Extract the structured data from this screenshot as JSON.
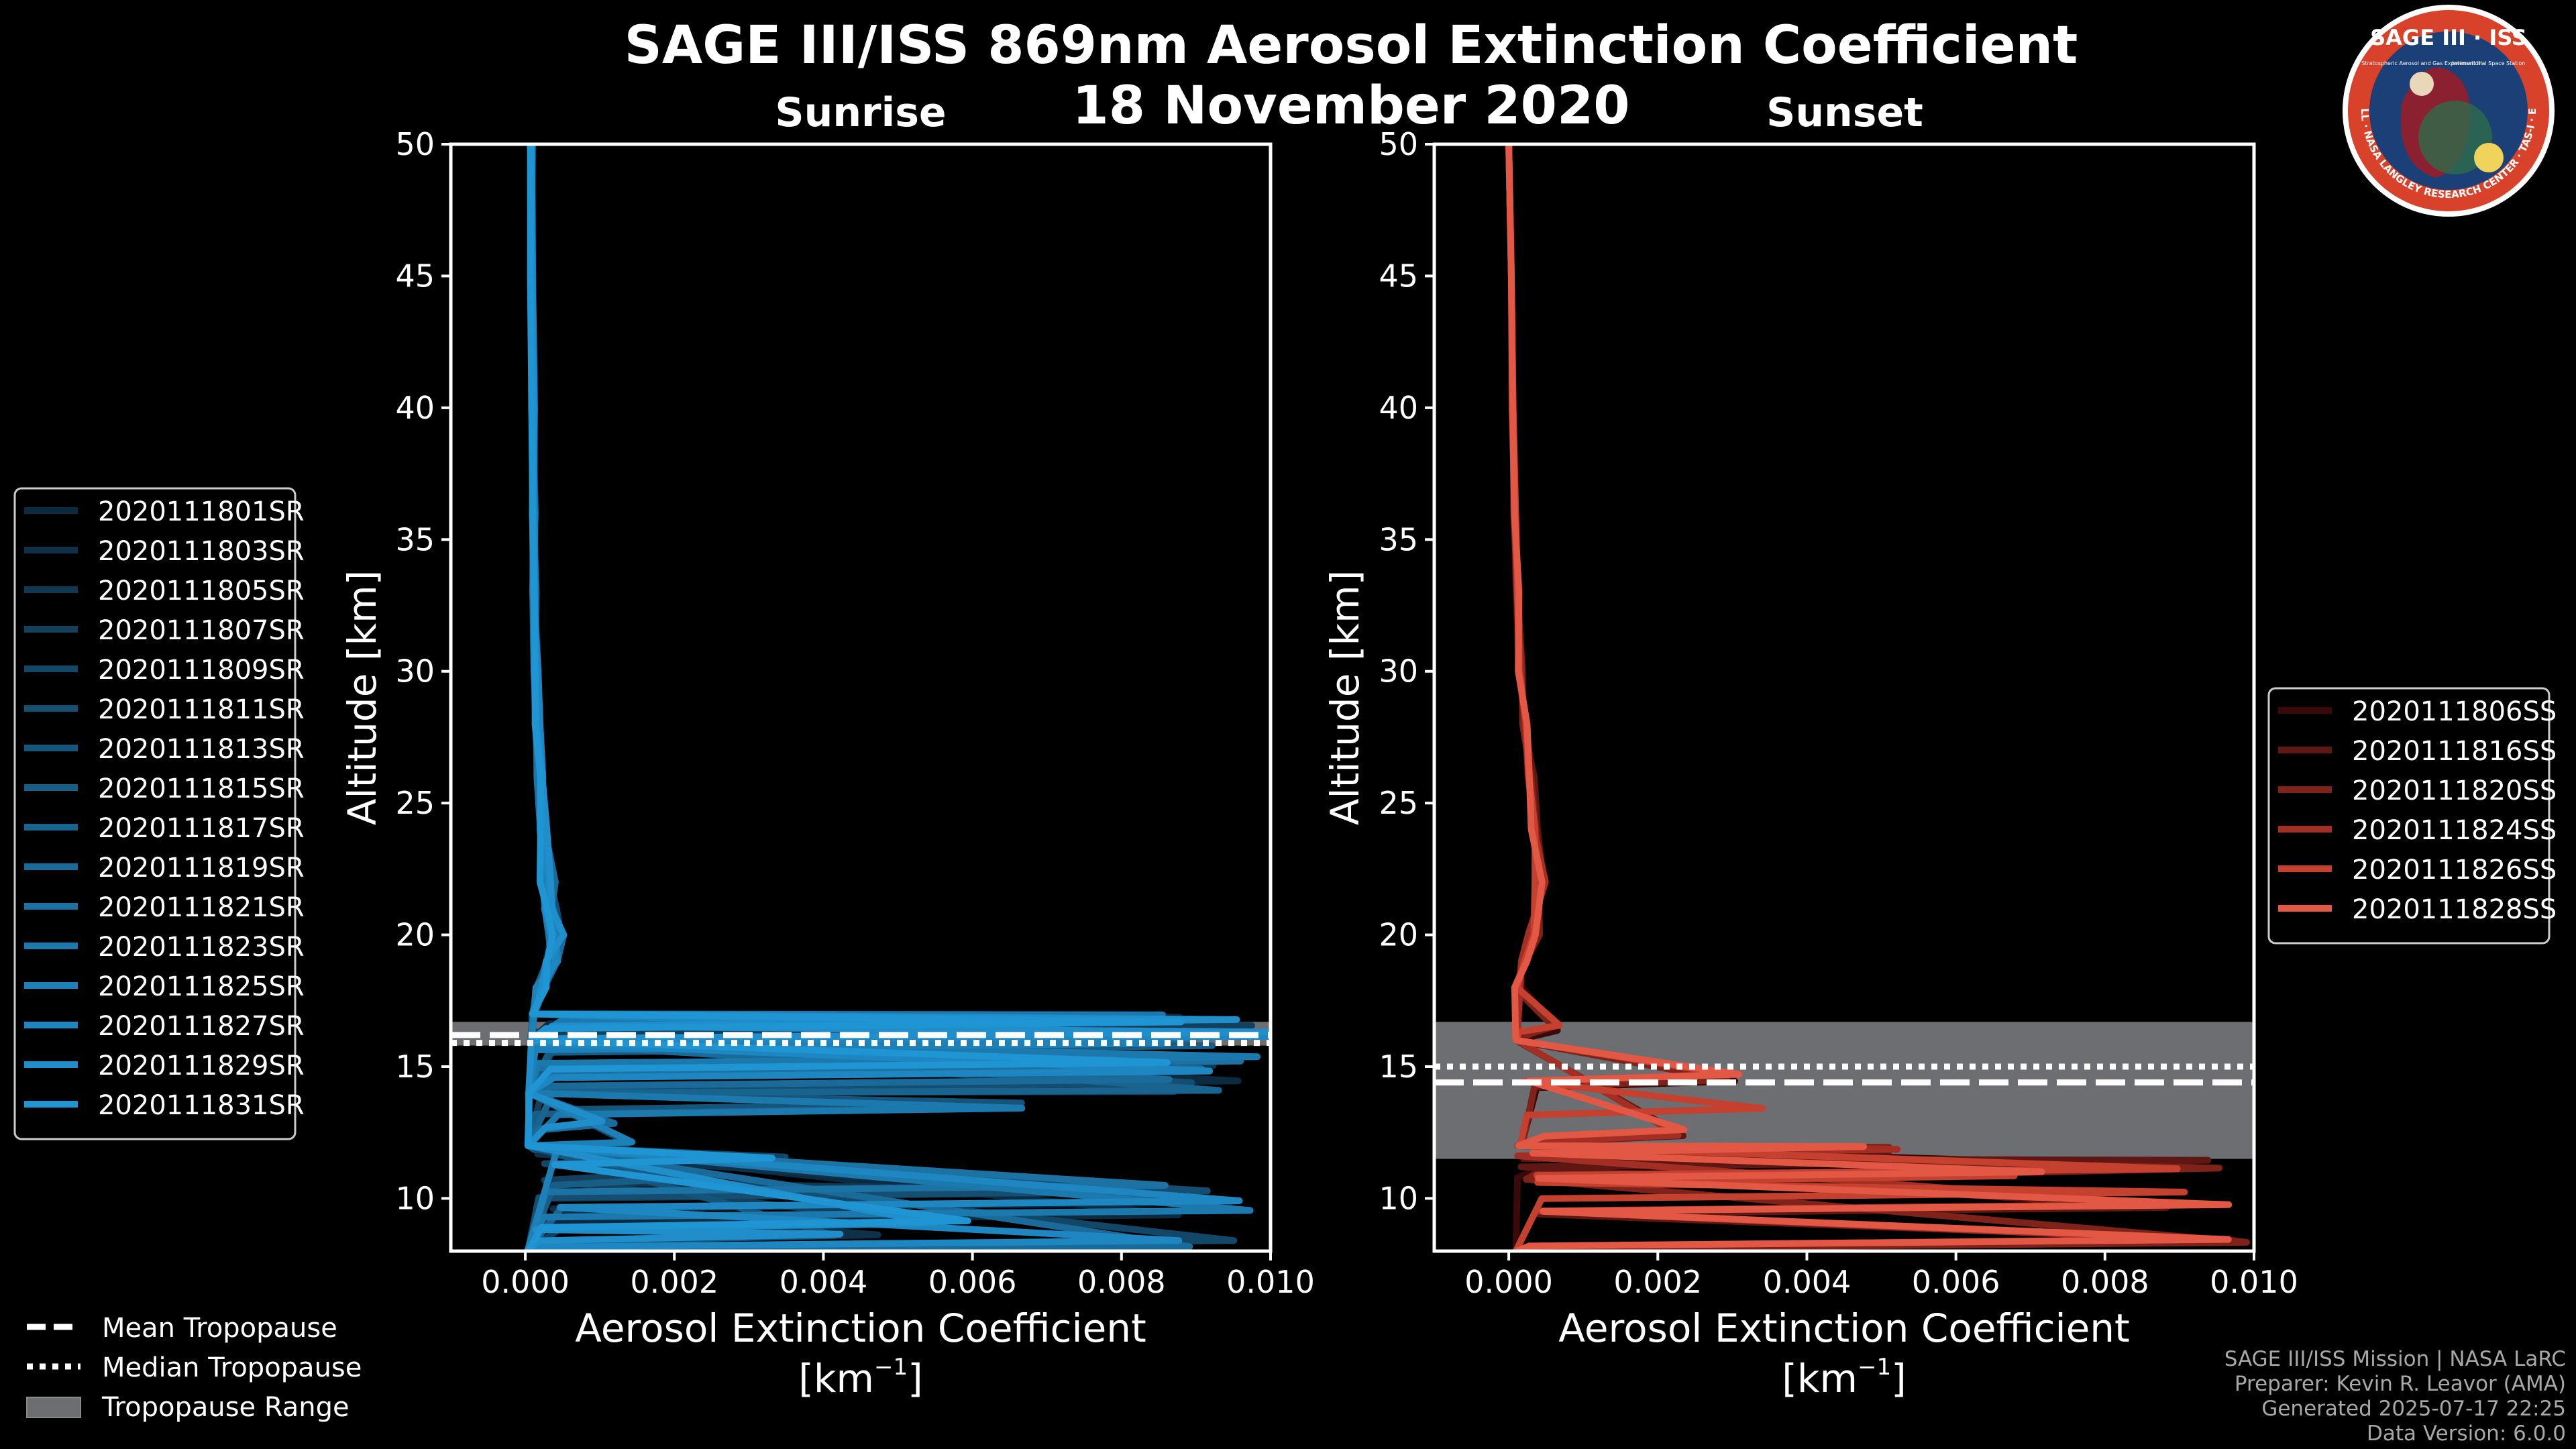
{
  "title": "SAGE III/ISS 869nm Aerosol Extinction Coefficient",
  "subtitle": "18 November 2020",
  "logo": {
    "top_text": "SAGE III · ISS",
    "ring_text": "BALL · NASA LANGLEY RESEARCH CENTER · TAS-I · ESA",
    "small_left": "Stratospheric Aerosol and Gas Experiment III",
    "small_right": "International Space Station",
    "colors": {
      "ring": "#d8412a",
      "inner": "#1b3f77",
      "border": "#ffffff"
    }
  },
  "colors": {
    "background": "#000000",
    "axes": "#ffffff",
    "tropopause_band": "#6d6e72",
    "sunrise_line": "#1a80b9",
    "sunset_line": "#e25845"
  },
  "tropopause_legend": {
    "mean_label": "Mean Tropopause",
    "median_label": "Median Tropopause",
    "range_label": "Tropopause Range"
  },
  "credits": {
    "line1": "SAGE III/ISS Mission | NASA LaRC",
    "line2": "Preparer: Kevin R. Leavor (AMA)",
    "line3": "Generated 2025-07-17 22:25",
    "line4": "Data Version: 6.0.0"
  },
  "chart_data": [
    {
      "type": "line",
      "title": "Sunrise",
      "xlabel": "Aerosol Extinction Coefficient",
      "xlabel_units": "[km",
      "xlabel_units_sup": "−1",
      "xlabel_units_close": "]",
      "ylabel": "Altitude [km]",
      "xlim": [
        -0.001,
        0.01
      ],
      "ylim": [
        8,
        50
      ],
      "xticks": [
        0.0,
        0.002,
        0.004,
        0.006,
        0.008,
        0.01
      ],
      "xtick_labels": [
        "0.000",
        "0.002",
        "0.004",
        "0.006",
        "0.008",
        "0.010"
      ],
      "yticks": [
        10,
        15,
        20,
        25,
        30,
        35,
        40,
        45,
        50
      ],
      "tropopause": {
        "mean": 16.2,
        "median": 15.9,
        "range": [
          15.8,
          16.7
        ]
      },
      "series_labels": [
        "2020111801SR",
        "2020111803SR",
        "2020111805SR",
        "2020111807SR",
        "2020111809SR",
        "2020111811SR",
        "2020111813SR",
        "2020111815SR",
        "2020111817SR",
        "2020111819SR",
        "2020111821SR",
        "2020111823SR",
        "2020111825SR",
        "2020111827SR",
        "2020111829SR",
        "2020111831SR"
      ],
      "legend_colors": [
        "#0c2a40",
        "#0e3149",
        "#103853",
        "#12405d",
        "#134767",
        "#154e71",
        "#16557b",
        "#185d85",
        "#19648f",
        "#1a6b99",
        "#1b72a3",
        "#1c79ad",
        "#1d80b7",
        "#1e87c1",
        "#1f8ecb",
        "#2095d4"
      ],
      "reference_profile": {
        "x": [
          8e-05,
          8e-05,
          0.0001,
          0.00011,
          0.00012,
          0.00014,
          0.00016,
          0.00019,
          0.00024,
          0.0003,
          0.00035,
          0.0004,
          0.00035,
          0.0002,
          0.0001,
          8e-05,
          5e-05,
          4e-05,
          3e-05
        ],
        "y": [
          50,
          45,
          40,
          36,
          33,
          30,
          28,
          26,
          24,
          22,
          21,
          20,
          19,
          18,
          17,
          16,
          14,
          12,
          8
        ]
      },
      "lower_excursions": [
        {
          "y": 16.9,
          "x": 0.01
        },
        {
          "y": 16.7,
          "x": 0.01
        },
        {
          "y": 16.3,
          "x": 0.01
        },
        {
          "y": 16.1,
          "x": 0.01
        },
        {
          "y": 15.8,
          "x": 0.01
        },
        {
          "y": 15.3,
          "x": 0.01
        },
        {
          "y": 14.9,
          "x": 0.01
        },
        {
          "y": 14.5,
          "x": 0.01
        },
        {
          "y": 14.2,
          "x": 0.01
        },
        {
          "y": 13.5,
          "x": 0.0074
        },
        {
          "y": 12.8,
          "x": 0.0012
        },
        {
          "y": 12.0,
          "x": 0.0015
        },
        {
          "y": 11.5,
          "x": 0.0038
        },
        {
          "y": 10.8,
          "x": 0.0021
        },
        {
          "y": 10.4,
          "x": 0.01
        },
        {
          "y": 9.9,
          "x": 0.01
        },
        {
          "y": 9.5,
          "x": 0.01
        },
        {
          "y": 9.1,
          "x": 0.0061
        },
        {
          "y": 8.7,
          "x": 0.0048
        },
        {
          "y": 8.3,
          "x": 0.01
        }
      ]
    },
    {
      "type": "line",
      "title": "Sunset",
      "xlabel": "Aerosol Extinction Coefficient",
      "xlabel_units": "[km",
      "xlabel_units_sup": "−1",
      "xlabel_units_close": "]",
      "ylabel": "Altitude [km]",
      "xlim": [
        -0.001,
        0.01
      ],
      "ylim": [
        8,
        50
      ],
      "xticks": [
        0.0,
        0.002,
        0.004,
        0.006,
        0.008,
        0.01
      ],
      "xtick_labels": [
        "0.000",
        "0.002",
        "0.004",
        "0.006",
        "0.008",
        "0.010"
      ],
      "yticks": [
        10,
        15,
        20,
        25,
        30,
        35,
        40,
        45,
        50
      ],
      "tropopause": {
        "mean": 14.4,
        "median": 15.0,
        "range": [
          11.5,
          16.7
        ]
      },
      "series_labels": [
        "2020111806SS",
        "2020111816SS",
        "2020111820SS",
        "2020111824SS",
        "2020111826SS",
        "2020111828SS"
      ],
      "legend_colors": [
        "#3a0a0a",
        "#5e1712",
        "#7f2219",
        "#a32f24",
        "#c4402f",
        "#e25845"
      ],
      "reference_profile": {
        "x": [
          0.0,
          3e-05,
          5e-05,
          8e-05,
          0.00011,
          0.00015,
          0.0002,
          0.00028,
          0.00036,
          0.0004,
          0.00035,
          0.0002,
          0.00012,
          0.0001,
          0.00015,
          0.0001
        ],
        "y": [
          50,
          45,
          40,
          36,
          33,
          30,
          28,
          26,
          24,
          22,
          20,
          19,
          18,
          16,
          12,
          8
        ]
      },
      "lower_excursions": [
        {
          "y": 16.5,
          "x": 0.0007
        },
        {
          "y": 14.6,
          "x": 0.0032
        },
        {
          "y": 13.5,
          "x": 0.0035
        },
        {
          "y": 12.5,
          "x": 0.0025
        },
        {
          "y": 11.9,
          "x": 0.0055
        },
        {
          "y": 11.4,
          "x": 0.01
        },
        {
          "y": 11.2,
          "x": 0.01
        },
        {
          "y": 10.9,
          "x": 0.0075
        },
        {
          "y": 10.1,
          "x": 0.01
        },
        {
          "y": 9.7,
          "x": 0.01
        },
        {
          "y": 8.4,
          "x": 0.01
        }
      ]
    }
  ]
}
